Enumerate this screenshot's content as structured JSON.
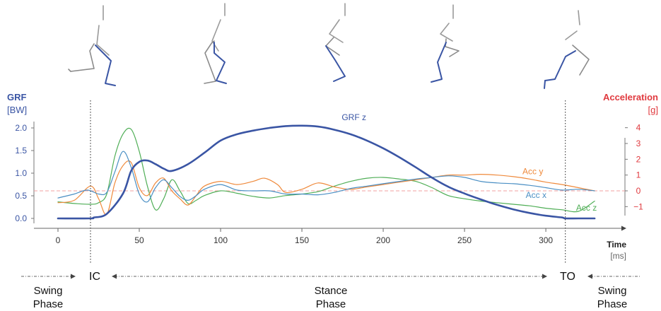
{
  "chart_data": {
    "type": "line",
    "x_label": "Time",
    "x_unit": "[ms]",
    "x_ticks": [
      0,
      50,
      100,
      150,
      200,
      250,
      300
    ],
    "x_range": [
      0,
      335
    ],
    "left_axis": {
      "label": "GRF",
      "unit": "[BW]",
      "range": [
        0.0,
        2.0
      ],
      "ticks": [
        "0.0",
        "0.5",
        "1.0",
        "1.5",
        "2.0"
      ],
      "color": "#3a55a4"
    },
    "right_axis": {
      "label": "Acceleration",
      "unit": "[g]",
      "range": [
        -1,
        4
      ],
      "ticks": [
        "−1",
        "0",
        "1",
        "2",
        "3",
        "4"
      ],
      "color": "#e0393e"
    },
    "events": [
      {
        "label": "IC",
        "x": 20
      },
      {
        "label": "TO",
        "x": 312
      }
    ],
    "phases": [
      {
        "line1": "Swing",
        "line2": "Phase"
      },
      {
        "line1": "Stance",
        "line2": "Phase"
      },
      {
        "line1": "Swing",
        "line2": "Phase"
      }
    ],
    "series": [
      {
        "name": "GRF z",
        "axis": "left",
        "color": "#3a55a4",
        "x": [
          0,
          20,
          22,
          30,
          40,
          45,
          50,
          55,
          60,
          65,
          70,
          80,
          90,
          100,
          110,
          120,
          130,
          140,
          150,
          160,
          170,
          180,
          190,
          200,
          210,
          220,
          230,
          240,
          250,
          260,
          270,
          280,
          290,
          300,
          310,
          312,
          320,
          330
        ],
        "y": [
          0.0,
          0.0,
          0.02,
          0.1,
          0.55,
          1.05,
          1.25,
          1.28,
          1.2,
          1.1,
          1.05,
          1.2,
          1.45,
          1.72,
          1.86,
          1.94,
          2.0,
          2.04,
          2.05,
          2.03,
          1.96,
          1.86,
          1.72,
          1.55,
          1.35,
          1.13,
          0.9,
          0.7,
          0.55,
          0.42,
          0.3,
          0.2,
          0.12,
          0.06,
          0.02,
          0.0,
          0.0,
          0.0
        ]
      },
      {
        "name": "Acc x",
        "axis": "right",
        "color": "#4a8fc4",
        "x": [
          0,
          10,
          18,
          25,
          30,
          35,
          40,
          45,
          50,
          55,
          60,
          65,
          70,
          75,
          80,
          85,
          90,
          100,
          110,
          120,
          130,
          140,
          150,
          160,
          170,
          180,
          190,
          200,
          210,
          220,
          230,
          240,
          250,
          260,
          270,
          280,
          290,
          300,
          310,
          320,
          330
        ],
        "y": [
          -0.45,
          -0.2,
          0.05,
          -0.2,
          -0.1,
          1.2,
          2.5,
          1.5,
          -0.2,
          -0.7,
          0.2,
          0.7,
          0.2,
          -0.35,
          -0.6,
          -0.3,
          0.1,
          0.4,
          0.05,
          0.0,
          0.0,
          -0.2,
          -0.2,
          -0.25,
          -0.1,
          0.15,
          0.3,
          0.45,
          0.6,
          0.75,
          0.85,
          0.95,
          0.85,
          0.6,
          0.5,
          0.45,
          0.35,
          0.2,
          0.05,
          0.1,
          0.0
        ]
      },
      {
        "name": "Acc y",
        "axis": "right",
        "color": "#ef8a3c",
        "x": [
          0,
          10,
          20,
          25,
          30,
          35,
          40,
          45,
          50,
          55,
          60,
          65,
          70,
          75,
          80,
          85,
          90,
          100,
          110,
          120,
          127,
          135,
          140,
          150,
          160,
          170,
          180,
          190,
          200,
          210,
          220,
          230,
          240,
          250,
          260,
          270,
          280,
          290,
          300,
          310,
          320,
          330
        ],
        "y": [
          -0.75,
          -0.6,
          0.3,
          -0.5,
          -1.5,
          0.5,
          1.6,
          1.8,
          0.2,
          -0.3,
          0.5,
          0.8,
          0.0,
          -0.5,
          -0.9,
          -0.3,
          0.3,
          0.6,
          0.4,
          0.6,
          0.8,
          0.4,
          -0.1,
          0.1,
          0.5,
          0.25,
          0.1,
          0.25,
          0.4,
          0.55,
          0.7,
          0.85,
          1.0,
          1.0,
          1.05,
          1.0,
          0.9,
          0.75,
          0.55,
          0.4,
          0.2,
          0.0
        ]
      },
      {
        "name": "Acc z",
        "axis": "right",
        "color": "#4fae56",
        "x": [
          0,
          10,
          20,
          25,
          30,
          35,
          40,
          45,
          50,
          55,
          60,
          65,
          70,
          75,
          80,
          85,
          90,
          100,
          110,
          120,
          130,
          140,
          150,
          160,
          170,
          180,
          190,
          200,
          210,
          220,
          230,
          240,
          250,
          260,
          270,
          280,
          290,
          300,
          310,
          320,
          330
        ],
        "y": [
          -0.7,
          -0.8,
          -0.85,
          -0.75,
          -0.2,
          2.2,
          3.6,
          3.9,
          2.5,
          0.3,
          -1.2,
          -0.5,
          0.7,
          0.0,
          -0.8,
          -0.6,
          -0.3,
          0.0,
          -0.15,
          -0.35,
          -0.45,
          -0.3,
          -0.2,
          -0.05,
          0.3,
          0.6,
          0.8,
          0.85,
          0.75,
          0.6,
          0.2,
          -0.3,
          -0.5,
          -0.65,
          -0.75,
          -0.85,
          -0.95,
          -1.1,
          -1.2,
          -1.3,
          -0.65
        ]
      }
    ],
    "series_labels": [
      {
        "text": "GRF z",
        "color": "#3a55a4",
        "x": 182,
        "axis": "left",
        "y": 2.17
      },
      {
        "text": "Acc y",
        "color": "#ef8a3c",
        "x": 292,
        "axis": "right",
        "y": 1.05
      },
      {
        "text": "Acc x",
        "color": "#4a8fc4",
        "x": 294,
        "axis": "right",
        "y": -0.45
      },
      {
        "text": "Acc z",
        "color": "#4fae56",
        "x": 325,
        "axis": "right",
        "y": -1.25
      }
    ],
    "zero_reference": {
      "axis": "right",
      "value": 0,
      "color": "#f0a0a0"
    }
  }
}
